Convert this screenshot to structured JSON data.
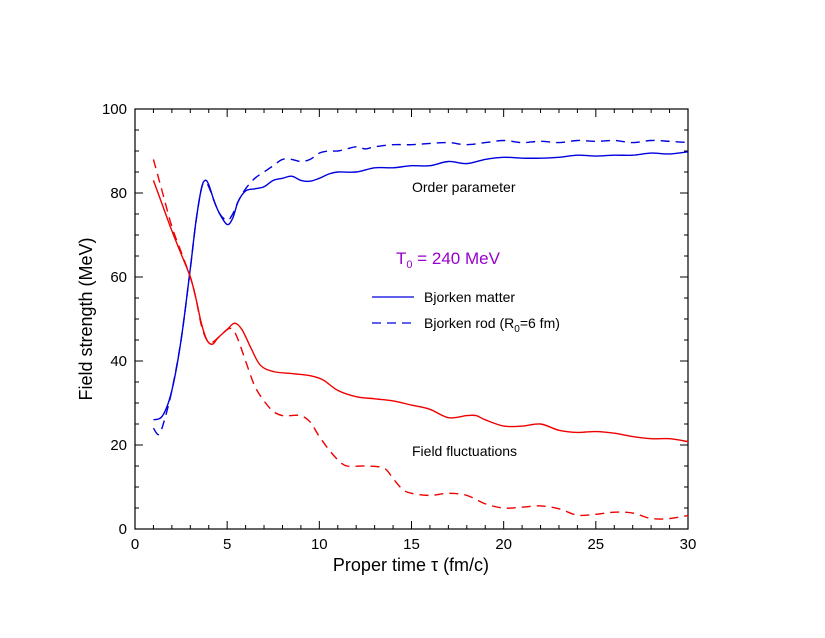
{
  "chart_data": {
    "type": "line",
    "xlabel": "Proper time τ (fm/c)",
    "ylabel": "Field strength (MeV)",
    "xlim": [
      0,
      30
    ],
    "ylim": [
      0,
      100
    ],
    "xticks": [
      "0",
      "5",
      "10",
      "15",
      "20",
      "25",
      "30"
    ],
    "yticks": [
      "0",
      "20",
      "40",
      "60",
      "80",
      "100"
    ],
    "grid": false,
    "legend_position": "center-right",
    "annotations": {
      "order_parameter": "Order parameter",
      "field_fluctuations": "Field fluctuations",
      "temperature_main": "T",
      "temperature_sub": "0",
      "temperature_rest": " = 240 MeV"
    },
    "legend": {
      "matter": "Bjorken matter",
      "rod_main": "Bjorken rod (R",
      "rod_sub": "0",
      "rod_rest": "=6 fm)"
    },
    "colors": {
      "order_parameter": "#0000dd",
      "field_fluctuations": "#ee0000",
      "temperature_text": "#9900cc"
    },
    "series": [
      {
        "group": "order_parameter",
        "legend_ref": "matter",
        "dash": "solid",
        "points": [
          [
            1.0,
            26
          ],
          [
            1.5,
            27
          ],
          [
            2.0,
            33
          ],
          [
            2.5,
            45
          ],
          [
            3.0,
            62
          ],
          [
            3.3,
            73
          ],
          [
            3.6,
            81
          ],
          [
            3.8,
            83
          ],
          [
            4.0,
            82
          ],
          [
            4.3,
            78
          ],
          [
            4.6,
            75
          ],
          [
            5.0,
            72.5
          ],
          [
            5.3,
            74
          ],
          [
            5.6,
            78
          ],
          [
            6.0,
            80.5
          ],
          [
            6.5,
            81
          ],
          [
            7.0,
            81.5
          ],
          [
            7.5,
            83
          ],
          [
            8.0,
            83.5
          ],
          [
            8.5,
            84
          ],
          [
            9.0,
            83
          ],
          [
            9.5,
            82.8
          ],
          [
            10.0,
            83.5
          ],
          [
            10.5,
            84.5
          ],
          [
            11.0,
            85
          ],
          [
            12.0,
            85
          ],
          [
            13.0,
            86
          ],
          [
            14.0,
            86
          ],
          [
            15.0,
            86.5
          ],
          [
            16.0,
            86.5
          ],
          [
            17.0,
            87.5
          ],
          [
            18.0,
            87
          ],
          [
            19.0,
            88
          ],
          [
            20.0,
            88.5
          ],
          [
            21.0,
            88.3
          ],
          [
            22.0,
            88.3
          ],
          [
            23.0,
            88.5
          ],
          [
            24.0,
            89
          ],
          [
            25.0,
            88.8
          ],
          [
            26.0,
            89
          ],
          [
            27.0,
            89
          ],
          [
            28.0,
            89.5
          ],
          [
            29.0,
            89.3
          ],
          [
            30.0,
            89.8
          ]
        ]
      },
      {
        "group": "order_parameter",
        "legend_ref": "rod",
        "dash": "dashed",
        "points": [
          [
            1.0,
            24
          ],
          [
            1.3,
            22.5
          ],
          [
            1.6,
            26
          ],
          [
            2.0,
            33
          ],
          [
            2.5,
            45
          ],
          [
            3.0,
            62
          ],
          [
            3.3,
            73
          ],
          [
            3.6,
            81
          ],
          [
            3.8,
            82.5
          ],
          [
            4.0,
            81.5
          ],
          [
            4.3,
            78
          ],
          [
            4.6,
            75
          ],
          [
            5.0,
            73.5
          ],
          [
            5.3,
            75
          ],
          [
            5.6,
            78
          ],
          [
            6.0,
            81
          ],
          [
            6.5,
            83.5
          ],
          [
            7.0,
            85
          ],
          [
            7.5,
            86.5
          ],
          [
            8.0,
            88
          ],
          [
            8.5,
            88
          ],
          [
            9.0,
            87.5
          ],
          [
            9.5,
            88
          ],
          [
            10.0,
            89.5
          ],
          [
            10.5,
            90
          ],
          [
            11.0,
            90
          ],
          [
            11.5,
            90.5
          ],
          [
            12.0,
            91
          ],
          [
            12.5,
            90.5
          ],
          [
            13.0,
            91
          ],
          [
            14.0,
            91.5
          ],
          [
            15.0,
            91.5
          ],
          [
            16.0,
            91.8
          ],
          [
            17.0,
            92
          ],
          [
            18.0,
            91.5
          ],
          [
            19.0,
            92
          ],
          [
            20.0,
            92.5
          ],
          [
            21.0,
            92
          ],
          [
            22.0,
            92.3
          ],
          [
            23.0,
            92
          ],
          [
            24.0,
            92.5
          ],
          [
            25.0,
            92.3
          ],
          [
            26.0,
            92.5
          ],
          [
            27.0,
            92
          ],
          [
            28.0,
            92.5
          ],
          [
            29.0,
            92.3
          ],
          [
            30.0,
            92
          ]
        ]
      },
      {
        "group": "field_fluctuations",
        "legend_ref": "matter",
        "dash": "solid",
        "points": [
          [
            1.0,
            83
          ],
          [
            1.5,
            77
          ],
          [
            2.0,
            71
          ],
          [
            2.5,
            65.5
          ],
          [
            3.0,
            60
          ],
          [
            3.3,
            55
          ],
          [
            3.6,
            49
          ],
          [
            3.9,
            45
          ],
          [
            4.2,
            44
          ],
          [
            4.5,
            45.5
          ],
          [
            5.0,
            47.5
          ],
          [
            5.4,
            49
          ],
          [
            5.8,
            47.5
          ],
          [
            6.3,
            43
          ],
          [
            6.8,
            39
          ],
          [
            7.5,
            37.5
          ],
          [
            8.5,
            37
          ],
          [
            9.5,
            36.5
          ],
          [
            10.2,
            35.5
          ],
          [
            11.0,
            33
          ],
          [
            12.0,
            31.5
          ],
          [
            13.0,
            31
          ],
          [
            14.0,
            30.5
          ],
          [
            15.0,
            29.5
          ],
          [
            16.0,
            28.5
          ],
          [
            17.0,
            26.5
          ],
          [
            18.0,
            27
          ],
          [
            18.5,
            27
          ],
          [
            19.0,
            26
          ],
          [
            20.0,
            24.5
          ],
          [
            21.0,
            24.5
          ],
          [
            22.0,
            25
          ],
          [
            23.0,
            23.5
          ],
          [
            24.0,
            23
          ],
          [
            25.0,
            23.2
          ],
          [
            26.0,
            22.8
          ],
          [
            27.0,
            22
          ],
          [
            28.0,
            21.5
          ],
          [
            29.0,
            21.5
          ],
          [
            30.0,
            20.8
          ]
        ]
      },
      {
        "group": "field_fluctuations",
        "legend_ref": "rod",
        "dash": "dashed",
        "points": [
          [
            1.0,
            88
          ],
          [
            1.5,
            80
          ],
          [
            2.0,
            72
          ],
          [
            2.5,
            66
          ],
          [
            3.0,
            60
          ],
          [
            3.3,
            55
          ],
          [
            3.6,
            48.5
          ],
          [
            3.9,
            45
          ],
          [
            4.2,
            44.5
          ],
          [
            4.5,
            45.5
          ],
          [
            5.0,
            47.5
          ],
          [
            5.3,
            47.5
          ],
          [
            5.6,
            45
          ],
          [
            6.0,
            40
          ],
          [
            6.5,
            34
          ],
          [
            7.0,
            30.5
          ],
          [
            7.5,
            28
          ],
          [
            8.0,
            27
          ],
          [
            8.5,
            27
          ],
          [
            9.0,
            27
          ],
          [
            9.5,
            25.5
          ],
          [
            10.0,
            22
          ],
          [
            10.5,
            19
          ],
          [
            11.0,
            16.5
          ],
          [
            11.5,
            15
          ],
          [
            12.5,
            15
          ],
          [
            13.5,
            14.5
          ],
          [
            14.0,
            12
          ],
          [
            14.5,
            9.5
          ],
          [
            15.0,
            8.5
          ],
          [
            16.0,
            8
          ],
          [
            17.0,
            8.5
          ],
          [
            18.0,
            8
          ],
          [
            19.0,
            6
          ],
          [
            20.0,
            5
          ],
          [
            21.0,
            5.2
          ],
          [
            22.0,
            5.5
          ],
          [
            23.0,
            4.8
          ],
          [
            24.0,
            3.3
          ],
          [
            25.0,
            3.5
          ],
          [
            26.0,
            4
          ],
          [
            27.0,
            3.8
          ],
          [
            28.0,
            2.5
          ],
          [
            29.0,
            2.5
          ],
          [
            30.0,
            3.2
          ]
        ]
      }
    ]
  }
}
